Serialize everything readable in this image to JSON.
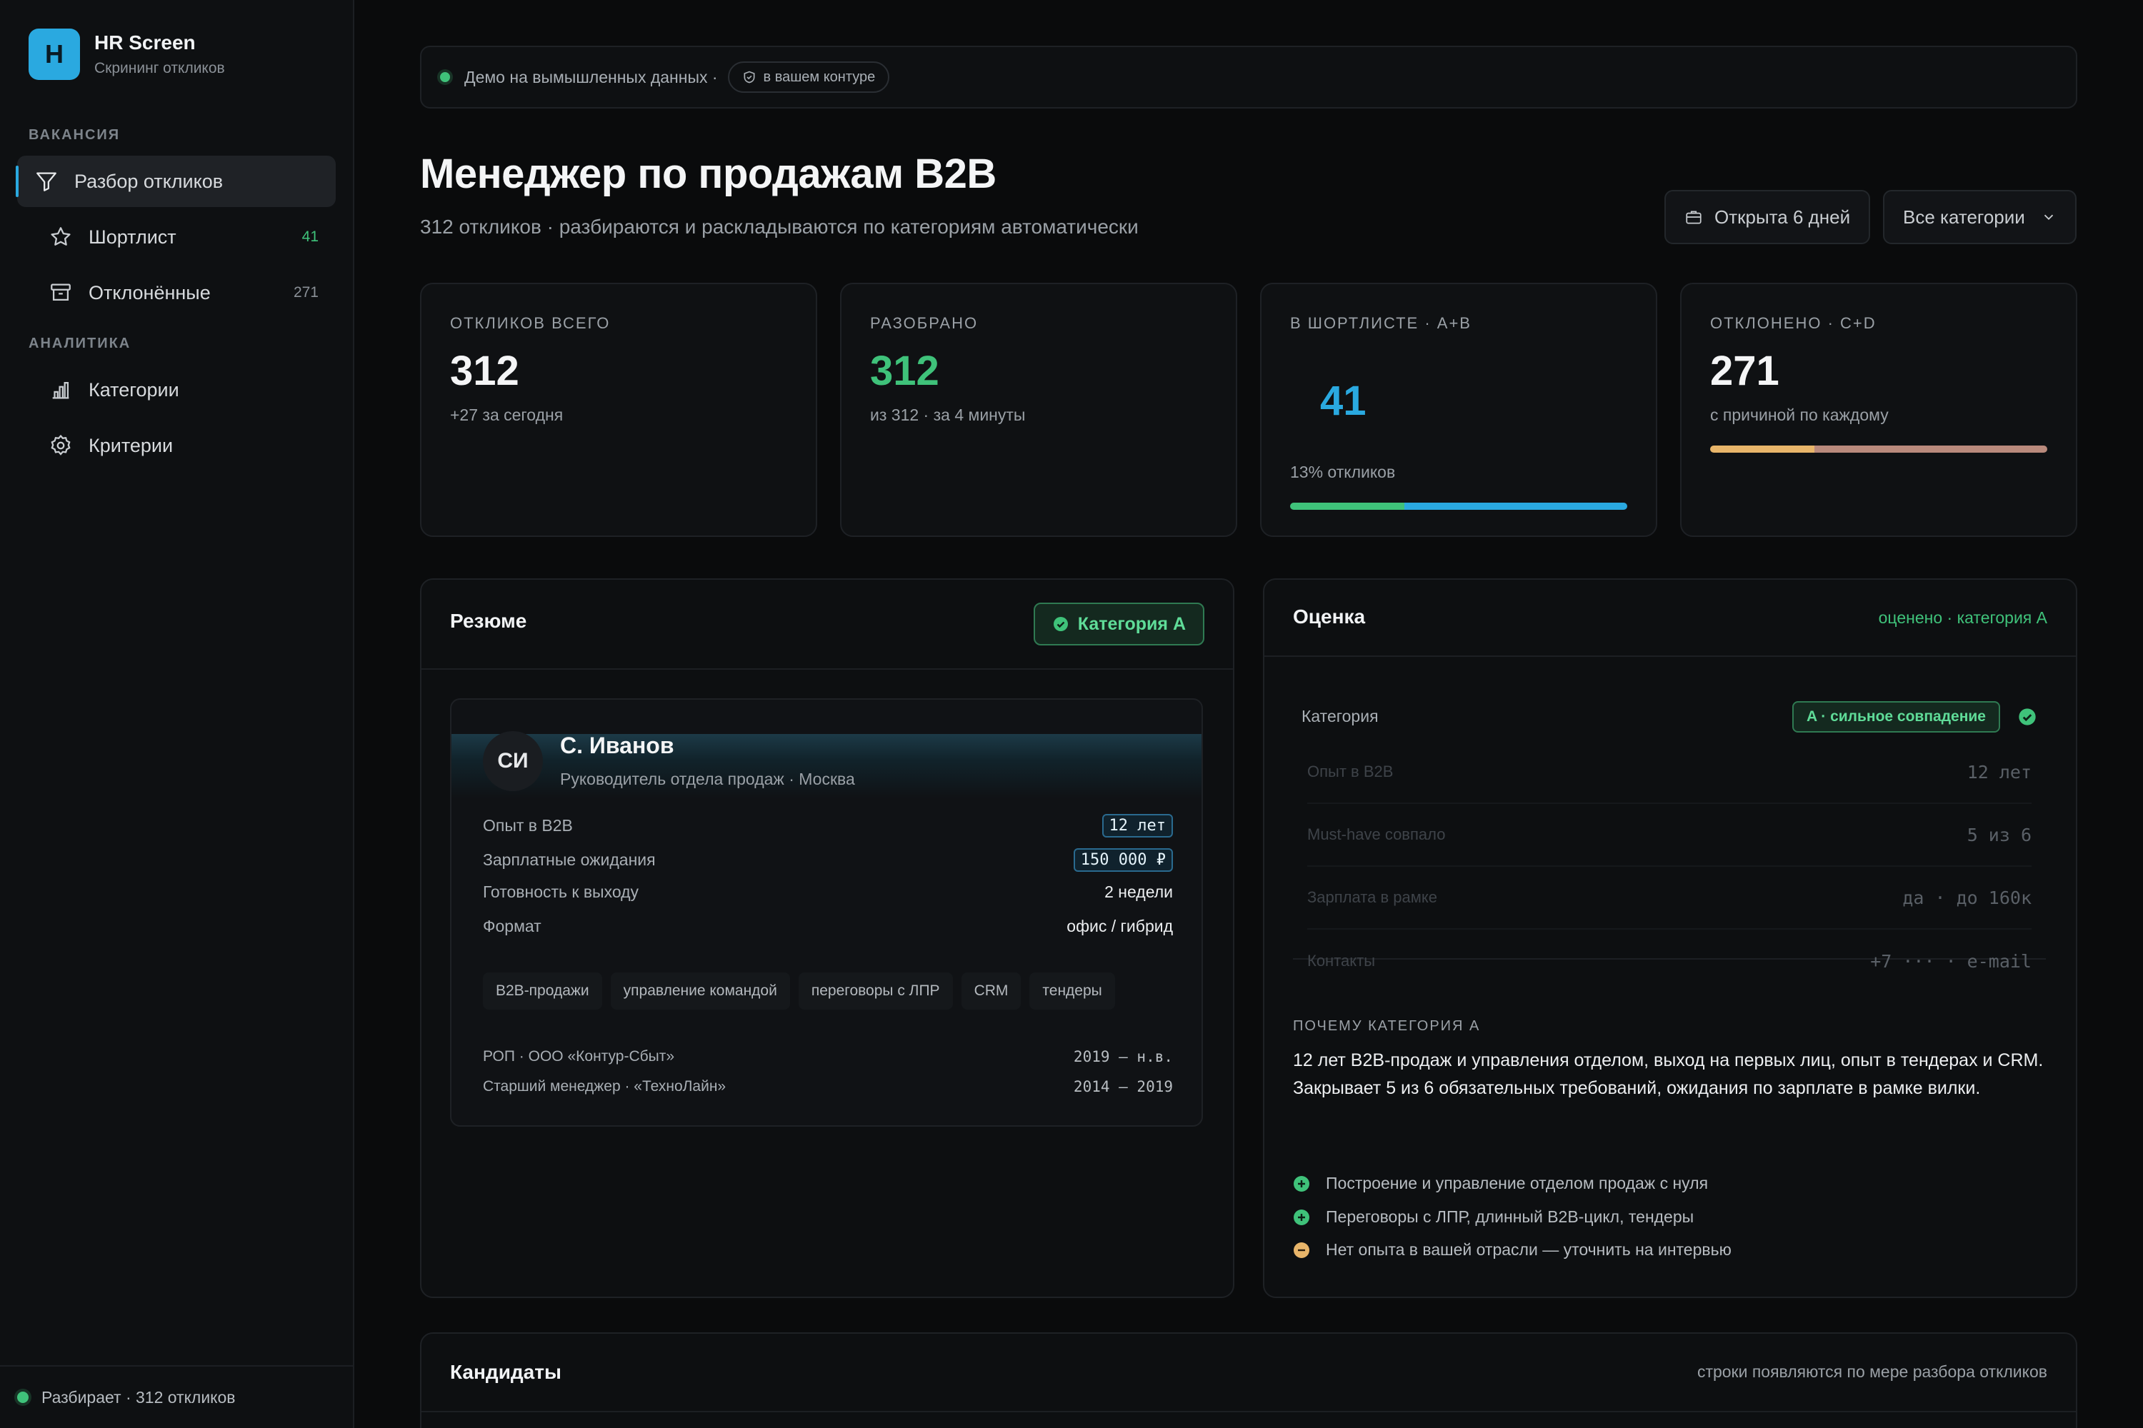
{
  "brand": {
    "logo_letter": "H",
    "title": "HR Screen",
    "subtitle": "Скрининг откликов"
  },
  "sidebar": {
    "section_vacancy": "ВАКАНСИЯ",
    "section_analytics": "АНАЛИТИКА",
    "items": [
      {
        "label": "Разбор откликов",
        "icon": "filter-icon",
        "active": true
      },
      {
        "label": "Шортлист",
        "icon": "star-icon",
        "count": "41"
      },
      {
        "label": "Отклонённые",
        "icon": "archive-icon",
        "count": "271"
      },
      {
        "label": "Категории",
        "icon": "bar-chart-icon"
      },
      {
        "label": "Критерии",
        "icon": "gear-icon"
      }
    ],
    "footer_status": "Разбирает · 312 откликов"
  },
  "demo_bar": {
    "text": "Демо на вымышленных данных ·",
    "pill": "в вашем контуре"
  },
  "header": {
    "title": "Менеджер по продажам B2B",
    "subtitle": "312 откликов · разбираются и раскладываются по категориям автоматически",
    "open_days": "Открыта 6 дней",
    "category_filter": "Все категории"
  },
  "stats": [
    {
      "label": "ОТКЛИКОВ ВСЕГО",
      "value": "312",
      "note": "+27 за сегодня"
    },
    {
      "label": "РАЗОБРАНО",
      "value": "312",
      "note": "из 312 · за 4 минуты"
    },
    {
      "label": "В ШОРТЛИСТЕ · A+B",
      "value": "41",
      "note": "13% откликов"
    },
    {
      "label": "ОТКЛОНЕНО · C+D",
      "value": "271",
      "note": "с причиной по каждому"
    }
  ],
  "colors": {
    "accent": "#2aa9e0",
    "green": "#3fc27a",
    "amber": "#e8b56a",
    "rose": "#b98a7c"
  },
  "resume": {
    "title": "Резюме",
    "badge": "Категория A",
    "initials": "СИ",
    "name": "С. Иванов",
    "role": "Руководитель отдела продаж · Москва",
    "fields": [
      {
        "k": "Опыт в B2B",
        "v": "12 лет"
      },
      {
        "k": "Зарплатные ожидания",
        "v": "150 000 ₽"
      },
      {
        "k": "Готовность к выходу",
        "v": "2 недели"
      },
      {
        "k": "Формат",
        "v": "офис / гибрид"
      }
    ],
    "skills": [
      "B2B-продажи",
      "управление командой",
      "переговоры с ЛПР",
      "CRM",
      "тендеры"
    ],
    "jobs": [
      {
        "place": "РОП · ООО «Контур-Сбыт»",
        "years": "2019 — н.в."
      },
      {
        "place": "Старший менеджер · «ТехноЛайн»",
        "years": "2014 — 2019"
      }
    ]
  },
  "evaluation": {
    "title": "Оценка",
    "status": "оценено · категория A",
    "category_label": "Категория",
    "category_value": "A · сильное совпадение",
    "rows": [
      {
        "k": "Опыт в B2B",
        "v": "12 лет"
      },
      {
        "k": "Must-have совпало",
        "v": "5 из 6"
      },
      {
        "k": "Зарплата в рамке",
        "v": "да · до 160к"
      },
      {
        "k": "Контакты",
        "v": "+7 ··· · e-mail"
      }
    ],
    "why_label": "ПОЧЕМУ КАТЕГОРИЯ A",
    "why_text": "12 лет B2B-продаж и управления отделом, выход на первых лиц, опыт в тендерах и CRM. Закрывает 5 из 6 обязательных требований, ожидания по зарплате в рамке вилки.",
    "reasons": [
      {
        "text": "Построение и управление отделом продаж с нуля",
        "kind": "plus"
      },
      {
        "text": "Переговоры с ЛПР, длинный B2B-цикл, тендеры",
        "kind": "plus"
      },
      {
        "text": "Нет опыта в вашей отрасли — уточнить на интервью",
        "kind": "minus"
      }
    ]
  },
  "candidates": {
    "title": "Кандидаты",
    "subtitle": "строки появляются по мере разбора откликов"
  }
}
